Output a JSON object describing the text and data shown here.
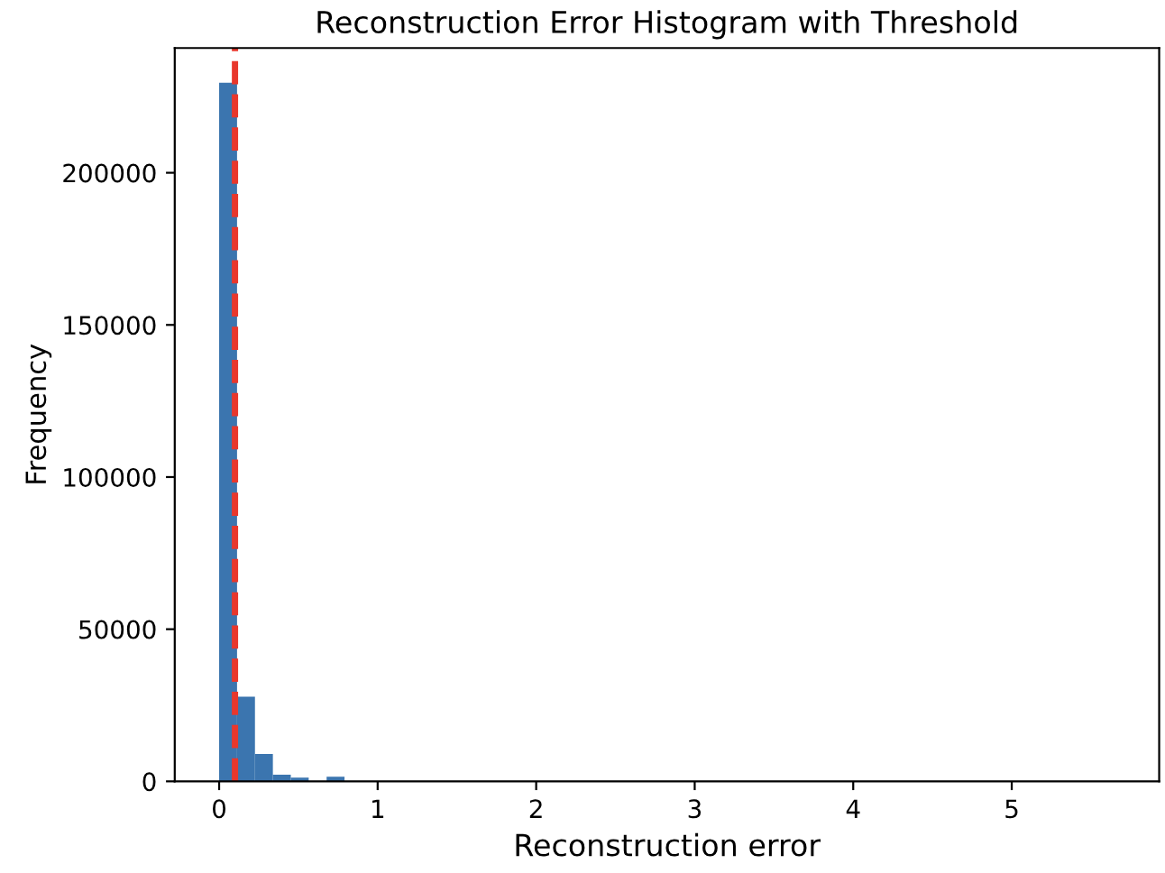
{
  "chart_data": {
    "type": "histogram",
    "title": "Reconstruction Error Histogram with Threshold",
    "xlabel": "Reconstruction error",
    "ylabel": "Frequency",
    "bins": [
      0,
      0.113,
      0.226,
      0.339,
      0.452,
      0.565,
      0.678,
      0.791,
      0.904,
      1.017,
      1.13,
      1.243,
      1.356,
      1.469,
      1.582,
      1.695,
      1.808,
      1.921,
      2.034,
      2.147,
      2.26,
      2.373,
      2.486,
      2.599,
      2.712,
      2.825,
      2.938,
      3.051,
      3.164,
      3.277,
      3.39,
      3.503,
      3.616,
      3.729,
      3.842,
      3.955,
      4.068,
      4.181,
      4.294,
      4.407,
      4.52,
      4.633,
      4.746,
      4.859,
      4.972,
      5.085,
      5.198,
      5.311,
      5.424,
      5.537,
      5.65
    ],
    "values": [
      229600,
      27800,
      9000,
      2200,
      1200,
      0,
      1500,
      0,
      0,
      0,
      0,
      0,
      0,
      0,
      0,
      0,
      0,
      0,
      0,
      0,
      0,
      0,
      0,
      0,
      0,
      0,
      0,
      0,
      0,
      0,
      0,
      0,
      0,
      0,
      0,
      0,
      0,
      0,
      0,
      0,
      0,
      0,
      0,
      0,
      0,
      0,
      0,
      0,
      0,
      0
    ],
    "color": "#3b75af",
    "xlim": [
      -0.28,
      5.93
    ],
    "ylim": [
      0,
      241000
    ],
    "xticks": [
      0,
      1,
      2,
      3,
      4,
      5
    ],
    "yticks": [
      0,
      50000,
      100000,
      150000,
      200000
    ],
    "ref_lines": [
      {
        "axis": "x",
        "value": 0.1,
        "color": "#e8372c",
        "line_style": "dashed"
      }
    ],
    "grid": false
  }
}
